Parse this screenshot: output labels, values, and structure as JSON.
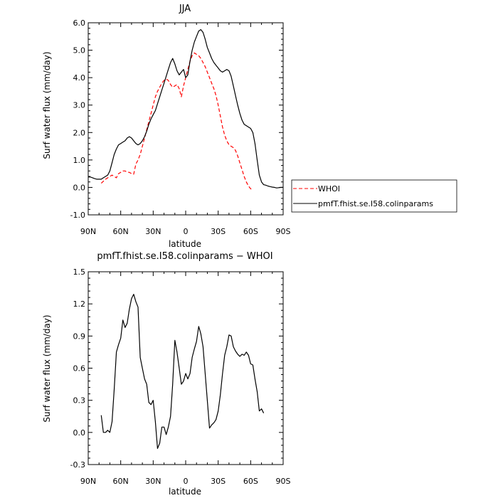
{
  "chart_data": [
    {
      "type": "line",
      "title": "JJA",
      "xlabel": "latitude",
      "ylabel": "Surf water flux (mm/day)",
      "xlim": [
        90,
        -90
      ],
      "ylim": [
        -1.0,
        6.0
      ],
      "xticks": [
        90,
        60,
        30,
        0,
        -30,
        -60,
        -90
      ],
      "xtick_labels": [
        "90N",
        "60N",
        "30N",
        "0",
        "30S",
        "60S",
        "90S"
      ],
      "yticks": [
        -1.0,
        0.0,
        1.0,
        2.0,
        3.0,
        4.0,
        5.0,
        6.0
      ],
      "ytick_labels": [
        "-1.0",
        "0.0",
        "1.0",
        "2.0",
        "3.0",
        "4.0",
        "5.0",
        "6.0"
      ],
      "legend_placement": "right",
      "series": [
        {
          "name": "WHOI",
          "color": "#ff0000",
          "dash": "dashed",
          "x": [
            78,
            74,
            70,
            68,
            66,
            64,
            62,
            60,
            58,
            56,
            54,
            52,
            50,
            48,
            46,
            44,
            42,
            40,
            38,
            36,
            34,
            32,
            30,
            28,
            26,
            24,
            22,
            20,
            18,
            16,
            14,
            12,
            10,
            8,
            6,
            4,
            2,
            0,
            -2,
            -4,
            -6,
            -8,
            -10,
            -12,
            -14,
            -16,
            -18,
            -20,
            -22,
            -24,
            -26,
            -28,
            -30,
            -32,
            -34,
            -36,
            -38,
            -40,
            -42,
            -44,
            -46,
            -48,
            -50,
            -52,
            -54,
            -56,
            -58,
            -60,
            -62,
            -64,
            -66,
            -68,
            -70,
            -72
          ],
          "y": [
            0.15,
            0.3,
            0.4,
            0.45,
            0.4,
            0.35,
            0.5,
            0.55,
            0.6,
            0.6,
            0.55,
            0.55,
            0.5,
            0.48,
            0.85,
            1.0,
            1.2,
            1.5,
            1.8,
            2.1,
            2.4,
            2.7,
            3.0,
            3.3,
            3.5,
            3.65,
            3.8,
            3.9,
            3.95,
            3.9,
            3.75,
            3.65,
            3.7,
            3.75,
            3.6,
            3.3,
            3.7,
            4.0,
            4.3,
            4.6,
            4.8,
            4.9,
            4.85,
            4.8,
            4.7,
            4.55,
            4.4,
            4.2,
            4.0,
            3.8,
            3.6,
            3.35,
            3.0,
            2.6,
            2.2,
            1.9,
            1.7,
            1.55,
            1.5,
            1.45,
            1.35,
            1.15,
            0.9,
            0.65,
            0.4,
            0.2,
            0.05,
            -0.05,
            -0.08,
            null,
            null,
            null,
            null,
            null
          ]
        },
        {
          "name": "pmfT.fhist.se.I58.colinparams",
          "color": "#000000",
          "dash": "solid",
          "x": [
            90,
            88,
            86,
            84,
            82,
            80,
            78,
            76,
            74,
            72,
            70,
            68,
            66,
            64,
            62,
            60,
            58,
            56,
            54,
            52,
            50,
            48,
            46,
            44,
            42,
            40,
            38,
            36,
            34,
            32,
            30,
            28,
            26,
            24,
            22,
            20,
            18,
            16,
            14,
            12,
            10,
            8,
            6,
            4,
            2,
            0,
            -2,
            -4,
            -6,
            -8,
            -10,
            -12,
            -14,
            -16,
            -18,
            -20,
            -22,
            -24,
            -26,
            -28,
            -30,
            -32,
            -34,
            -36,
            -38,
            -40,
            -42,
            -44,
            -46,
            -48,
            -50,
            -52,
            -54,
            -56,
            -58,
            -60,
            -62,
            -64,
            -66,
            -68,
            -70,
            -72,
            -74,
            -76,
            -78,
            -80,
            -82,
            -84,
            -86,
            -88,
            -90
          ],
          "y": [
            0.38,
            0.38,
            0.35,
            0.32,
            0.3,
            0.3,
            0.3,
            0.35,
            0.4,
            0.45,
            0.6,
            0.9,
            1.2,
            1.4,
            1.55,
            1.6,
            1.65,
            1.7,
            1.8,
            1.85,
            1.8,
            1.7,
            1.6,
            1.55,
            1.6,
            1.7,
            1.85,
            2.05,
            2.3,
            2.5,
            2.65,
            2.8,
            3.05,
            3.3,
            3.55,
            3.8,
            4.05,
            4.3,
            4.55,
            4.7,
            4.5,
            4.25,
            4.1,
            4.2,
            4.3,
            4.0,
            4.1,
            4.6,
            5.0,
            5.3,
            5.5,
            5.7,
            5.75,
            5.65,
            5.4,
            5.1,
            4.9,
            4.7,
            4.55,
            4.45,
            4.35,
            4.25,
            4.2,
            4.25,
            4.3,
            4.25,
            4.05,
            3.7,
            3.35,
            3.0,
            2.7,
            2.45,
            2.3,
            2.25,
            2.2,
            2.15,
            2.0,
            1.6,
            1.0,
            0.45,
            0.2,
            0.1,
            0.08,
            0.05,
            0.03,
            0.01,
            0.0,
            -0.02,
            -0.01,
            0.0,
            0.0
          ]
        }
      ]
    },
    {
      "type": "line",
      "title": "pmfT.fhist.se.I58.colinparams − WHOI",
      "xlabel": "latitude",
      "ylabel": "Surf water flux (mm/day)",
      "xlim": [
        90,
        -90
      ],
      "ylim": [
        -0.3,
        1.5
      ],
      "xticks": [
        90,
        60,
        30,
        0,
        -30,
        -60,
        -90
      ],
      "xtick_labels": [
        "90N",
        "60N",
        "30N",
        "0",
        "30S",
        "60S",
        "90S"
      ],
      "yticks": [
        -0.3,
        0.0,
        0.3,
        0.6,
        0.9,
        1.2,
        1.5
      ],
      "ytick_labels": [
        "-0.3",
        "0.0",
        "0.3",
        "0.6",
        "0.9",
        "1.2",
        "1.5"
      ],
      "series": [
        {
          "name": "",
          "color": "#000000",
          "dash": "solid",
          "x": [
            78,
            76,
            74,
            72,
            70,
            68,
            66,
            64,
            62,
            60,
            58,
            56,
            54,
            52,
            50,
            48,
            46,
            44,
            42,
            40,
            38,
            36,
            34,
            32,
            30,
            28,
            26,
            24,
            22,
            20,
            18,
            16,
            14,
            12,
            10,
            8,
            6,
            4,
            2,
            0,
            -2,
            -4,
            -6,
            -8,
            -10,
            -12,
            -14,
            -16,
            -18,
            -20,
            -22,
            -24,
            -26,
            -28,
            -30,
            -32,
            -34,
            -36,
            -38,
            -40,
            -42,
            -44,
            -46,
            -48,
            -50,
            -52,
            -54,
            -56,
            -58,
            -60,
            -62,
            -64,
            -66,
            -68,
            -70,
            -72
          ],
          "y": [
            0.16,
            0.0,
            0.0,
            0.02,
            0.0,
            0.1,
            0.4,
            0.75,
            0.82,
            0.88,
            1.05,
            0.98,
            1.02,
            1.15,
            1.25,
            1.29,
            1.22,
            1.17,
            0.7,
            0.6,
            0.5,
            0.45,
            0.28,
            0.26,
            0.3,
            0.1,
            -0.15,
            -0.1,
            0.05,
            0.05,
            -0.02,
            0.05,
            0.15,
            0.45,
            0.86,
            0.75,
            0.6,
            0.45,
            0.48,
            0.55,
            0.5,
            0.55,
            0.7,
            0.78,
            0.85,
            0.99,
            0.92,
            0.8,
            0.55,
            0.3,
            0.04,
            0.07,
            0.09,
            0.12,
            0.2,
            0.35,
            0.55,
            0.72,
            0.8,
            0.91,
            0.9,
            0.8,
            0.76,
            0.73,
            0.71,
            0.73,
            0.72,
            0.75,
            0.72,
            0.64,
            0.63,
            0.5,
            0.38,
            0.2,
            0.22,
            0.18
          ]
        }
      ]
    }
  ]
}
